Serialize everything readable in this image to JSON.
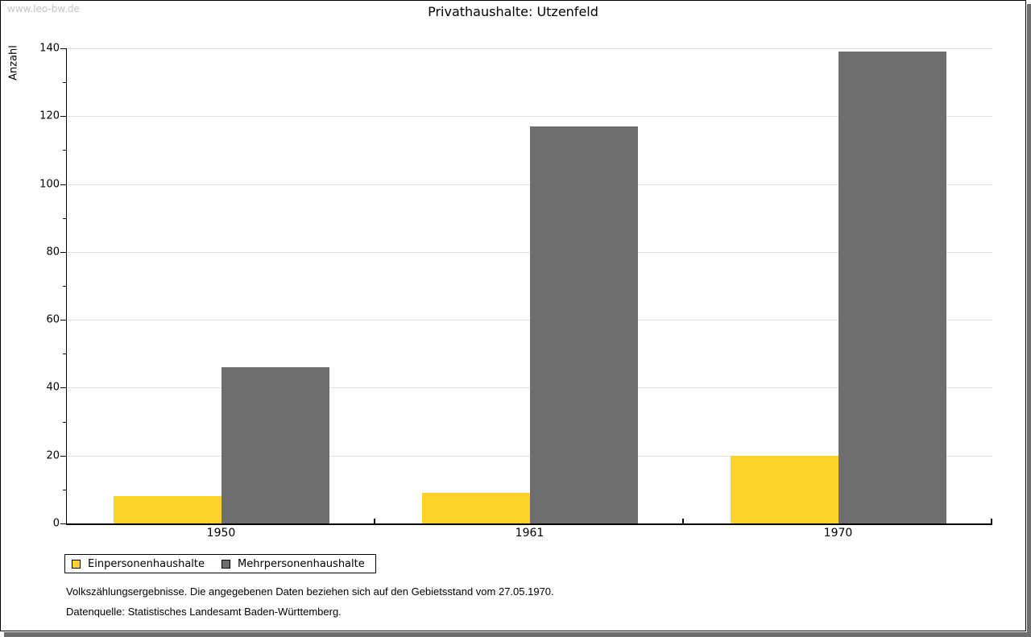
{
  "watermark": "www.leo-bw.de",
  "title": "Privathaushalte: Utzenfeld",
  "footnotes": {
    "line1": "Volkszählungsergebnisse. Die angegebenen Daten beziehen sich auf den Gebietsstand vom 27.05.1970.",
    "line2": "Datenquelle: Statistisches Landesamt Baden-Württemberg."
  },
  "chart_data": {
    "type": "bar",
    "title": "Privathaushalte: Utzenfeld",
    "xlabel": "",
    "ylabel": "Anzahl",
    "categories": [
      "1950",
      "1961",
      "1970"
    ],
    "series": [
      {
        "name": "Einpersonenhaushalte",
        "color": "#fbd32b",
        "values": [
          8,
          9,
          20
        ]
      },
      {
        "name": "Mehrpersonenhaushalte",
        "color": "#6e6e6e",
        "values": [
          46,
          117,
          139
        ]
      }
    ],
    "ylim": [
      0,
      140
    ],
    "yticks": [
      0,
      20,
      40,
      60,
      80,
      100,
      120,
      140
    ],
    "ytick_step": 20,
    "yminor_step": 10,
    "grid": true,
    "gridline_color": "#e0e0e0",
    "legend_position": "bottom"
  },
  "colors": {
    "axis": "#000000",
    "frame_border": "#000000",
    "drop_shadow": "#6e6e6e",
    "watermark_text": "#c5c5c5"
  }
}
